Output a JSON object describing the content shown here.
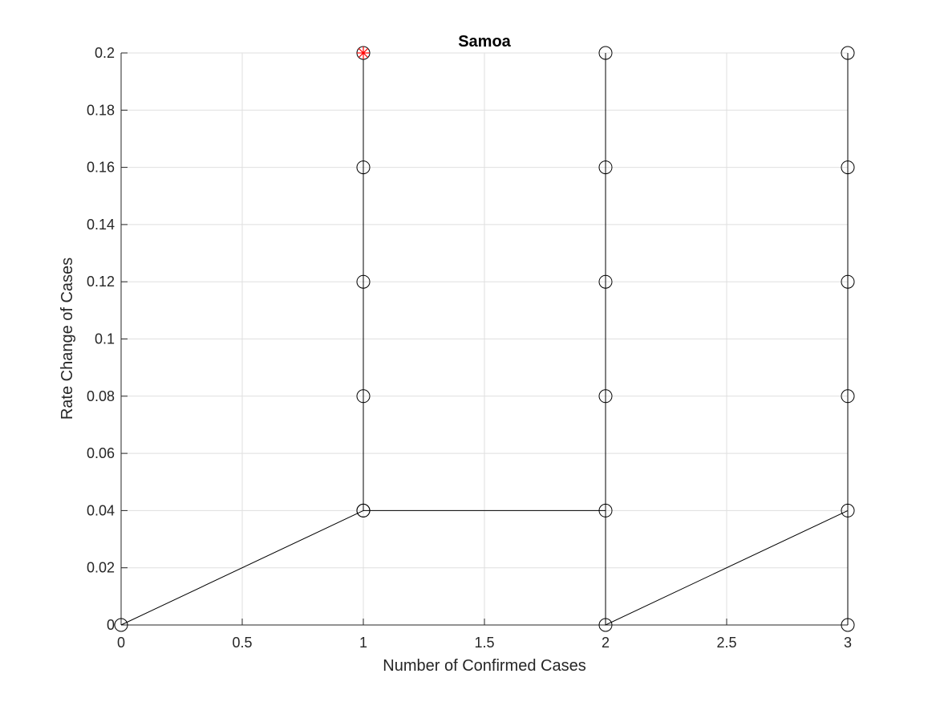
{
  "chart_data": {
    "type": "line",
    "title": "Samoa",
    "xlabel": "Number of Confirmed Cases",
    "ylabel": "Rate Change of Cases",
    "xlim": [
      0,
      3
    ],
    "ylim": [
      0,
      0.2
    ],
    "xticks": [
      0,
      0.5,
      1,
      1.5,
      2,
      2.5,
      3
    ],
    "xtick_labels": [
      "0",
      "0.5",
      "1",
      "1.5",
      "2",
      "2.5",
      "3"
    ],
    "yticks": [
      0,
      0.02,
      0.04,
      0.06,
      0.08,
      0.1,
      0.12,
      0.14,
      0.16,
      0.18,
      0.2
    ],
    "ytick_labels": [
      "0",
      "0.02",
      "0.04",
      "0.06",
      "0.08",
      "0.1",
      "0.12",
      "0.14",
      "0.16",
      "0.18",
      "0.2"
    ],
    "grid": true,
    "series": [
      {
        "marker": "circle",
        "color": "#000000",
        "points": [
          [
            0,
            0
          ],
          [
            1,
            0.04
          ],
          [
            1,
            0.08
          ],
          [
            1,
            0.12
          ],
          [
            1,
            0.16
          ],
          [
            1,
            0.2
          ],
          [
            1,
            0.04
          ],
          [
            2,
            0.04
          ],
          [
            2,
            0.08
          ],
          [
            2,
            0.12
          ],
          [
            2,
            0.16
          ],
          [
            2,
            0.2
          ],
          [
            2,
            0
          ],
          [
            3,
            0.04
          ],
          [
            3,
            0.08
          ],
          [
            3,
            0.12
          ],
          [
            3,
            0.16
          ],
          [
            3,
            0.2
          ],
          [
            3,
            0
          ]
        ]
      }
    ],
    "highlight": {
      "x": 1,
      "y": 0.2,
      "marker": "asterisk",
      "color": "#ff0000"
    }
  }
}
